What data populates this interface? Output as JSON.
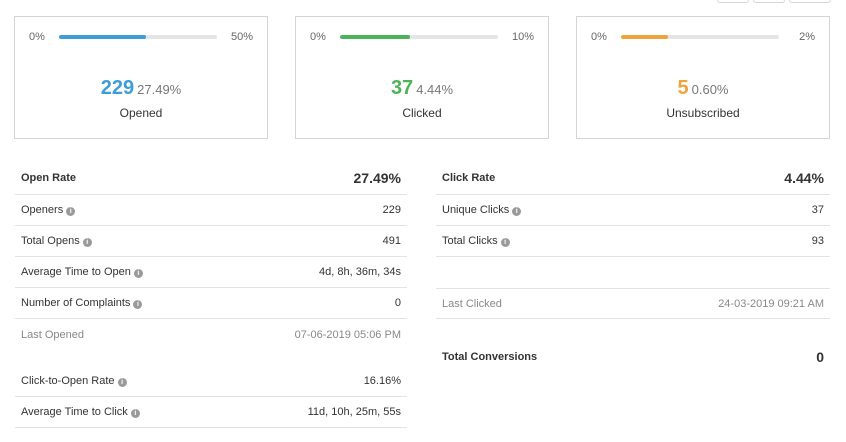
{
  "cards": [
    {
      "min": "0%",
      "max": "50%",
      "count": "229",
      "percent": "27.49%",
      "label": "Opened",
      "color": "#3d9dd8",
      "fill_fraction": 0.55
    },
    {
      "min": "0%",
      "max": "10%",
      "count": "37",
      "percent": "4.44%",
      "label": "Clicked",
      "color": "#4cb35a",
      "fill_fraction": 0.44
    },
    {
      "min": "0%",
      "max": "2%",
      "count": "5",
      "percent": "0.60%",
      "label": "Unsubscribed",
      "color": "#f0a23b",
      "fill_fraction": 0.3
    }
  ],
  "open_stats": {
    "title": "Open Rate",
    "title_value": "27.49%",
    "rows": [
      {
        "name": "Openers",
        "value": "229"
      },
      {
        "name": "Total Opens",
        "value": "491"
      },
      {
        "name": "Average Time to Open",
        "value": "4d, 8h, 36m, 34s"
      },
      {
        "name": "Number of Complaints",
        "value": "0"
      }
    ],
    "last_opened_label": "Last Opened",
    "last_opened_value": "07-06-2019 05:06 PM",
    "cto_label": "Click-to-Open Rate",
    "cto_value": "16.16%",
    "avg_click_label": "Average Time to Click",
    "avg_click_value": "11d, 10h, 25m, 55s"
  },
  "click_stats": {
    "title": "Click Rate",
    "title_value": "4.44%",
    "rows": [
      {
        "name": "Unique Clicks",
        "value": "37"
      },
      {
        "name": "Total Clicks",
        "value": "93"
      }
    ],
    "last_clicked_label": "Last Clicked",
    "last_clicked_value": "24-03-2019 09:21 AM",
    "conversions_label": "Total Conversions",
    "conversions_value": "0"
  },
  "icons": {
    "info": "info-icon"
  }
}
